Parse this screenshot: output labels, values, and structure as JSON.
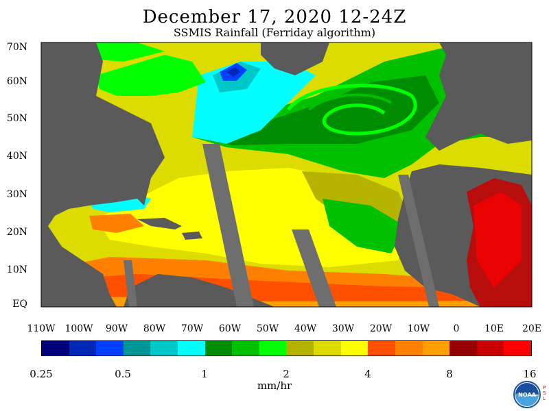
{
  "title": "December 17, 2020 12-24Z",
  "subtitle": "SSMIS Rainfall (Ferriday algorithm)",
  "lat_labels": [
    "70N",
    "60N",
    "50N",
    "40N",
    "30N",
    "20N",
    "10N",
    "EQ"
  ],
  "lon_labels": [
    "110W",
    "100W",
    "90W",
    "80W",
    "70W",
    "60W",
    "50W",
    "40W",
    "30W",
    "20W",
    "10W",
    "0",
    "10E",
    "20E"
  ],
  "colorbar": {
    "colors": [
      "#00007d",
      "#0028b4",
      "#0040ff",
      "#009696",
      "#00c8c8",
      "#00ffff",
      "#008c00",
      "#00c000",
      "#00ff00",
      "#b4b400",
      "#dcdc00",
      "#ffff00",
      "#ff5000",
      "#ff8000",
      "#ffa000",
      "#960000",
      "#c80000",
      "#ff0000"
    ],
    "labels": [
      "0.25",
      "0.5",
      "1",
      "2",
      "4",
      "8",
      "16"
    ],
    "units": "mm/hr"
  },
  "colors": {
    "land": "#5a5a5a",
    "no_data_swath": "#6e6e6e"
  },
  "logo": {
    "name": "NOAA",
    "side_text": "PSL"
  }
}
